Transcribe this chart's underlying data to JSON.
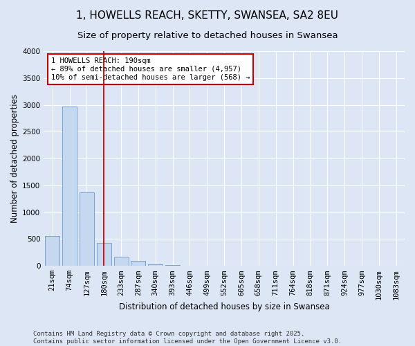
{
  "title": "1, HOWELLS REACH, SKETTY, SWANSEA, SA2 8EU",
  "subtitle": "Size of property relative to detached houses in Swansea",
  "xlabel": "Distribution of detached houses by size in Swansea",
  "ylabel": "Number of detached properties",
  "categories": [
    "21sqm",
    "74sqm",
    "127sqm",
    "180sqm",
    "233sqm",
    "287sqm",
    "340sqm",
    "393sqm",
    "446sqm",
    "499sqm",
    "552sqm",
    "605sqm",
    "658sqm",
    "711sqm",
    "764sqm",
    "818sqm",
    "871sqm",
    "924sqm",
    "977sqm",
    "1030sqm",
    "1083sqm"
  ],
  "values": [
    560,
    2970,
    1370,
    430,
    175,
    90,
    35,
    15,
    5,
    0,
    0,
    0,
    0,
    0,
    0,
    0,
    0,
    0,
    0,
    0,
    0
  ],
  "bar_color": "#c5d8ef",
  "bar_edge_color": "#6699cc",
  "vline_color": "#cc0000",
  "annotation_text": "1 HOWELLS REACH: 190sqm\n← 89% of detached houses are smaller (4,957)\n10% of semi-detached houses are larger (568) →",
  "annotation_box_color": "#ffffff",
  "annotation_box_edge": "#cc0000",
  "background_color": "#dce6f5",
  "plot_bg_color": "#dce6f5",
  "ylim": [
    0,
    4000
  ],
  "yticks": [
    0,
    500,
    1000,
    1500,
    2000,
    2500,
    3000,
    3500,
    4000
  ],
  "footer": "Contains HM Land Registry data © Crown copyright and database right 2025.\nContains public sector information licensed under the Open Government Licence v3.0.",
  "title_fontsize": 11,
  "subtitle_fontsize": 9.5,
  "tick_fontsize": 7.5,
  "label_fontsize": 8.5,
  "footer_fontsize": 6.5,
  "annotation_fontsize": 7.5,
  "vline_x_index": 3
}
